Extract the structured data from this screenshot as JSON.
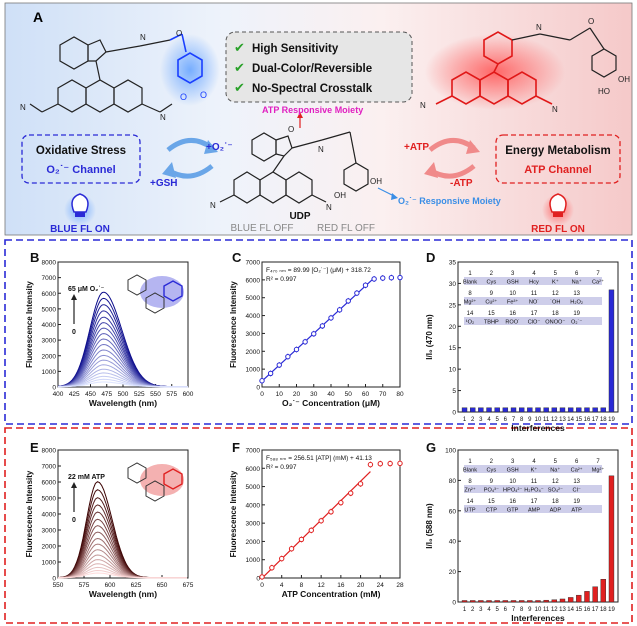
{
  "panel_letters": [
    "A",
    "B",
    "C",
    "D",
    "E",
    "F",
    "G"
  ],
  "top": {
    "features": [
      "High Sensitivity",
      "Dual-Color/Reversible",
      "No-Spectral Crosstalk"
    ],
    "left_box_title": "Oxidative Stress",
    "left_box_channel": "O₂˙⁻ Channel",
    "right_box_title": "Energy Metabolism",
    "right_box_channel": "ATP Channel",
    "left_arrow_top": "+O₂˙⁻",
    "left_arrow_bottom": "+GSH",
    "right_arrow_top": "+ATP",
    "right_arrow_bottom": "-ATP",
    "atp_moiety": "ATP Responsive Moiety",
    "o2_moiety": "O₂˙⁻ Responsive Moiety",
    "probe_name": "UDP",
    "blue_off": "BLUE FL OFF",
    "red_off": "RED FL OFF",
    "blue_on": "BLUE FL ON",
    "red_on": "RED FL ON",
    "colors": {
      "blue": "#2a2ad6",
      "red": "#e02020",
      "magenta": "#e020c0",
      "sky": "#3a8ee6",
      "green": "#2aa12a"
    }
  },
  "chart_data": [
    {
      "id": "B",
      "type": "line",
      "xlabel": "Wavelength (nm)",
      "ylabel": "Fluorescence Intensity",
      "xlim": [
        400,
        600
      ],
      "ylim": [
        0,
        8000
      ],
      "xticks": [
        400,
        425,
        450,
        475,
        500,
        525,
        550,
        575,
        600
      ],
      "yticks": [
        0,
        1000,
        2000,
        3000,
        4000,
        5000,
        6000,
        7000,
        8000
      ],
      "annotation_top": "65 μM O₂˙⁻",
      "annotation_bottom": "0",
      "peak_x": 470,
      "series_peaks": [
        6050,
        5650,
        5250,
        4850,
        4450,
        4100,
        3750,
        3400,
        3050,
        2700,
        2350,
        2000,
        1700,
        1400,
        1120,
        880,
        660,
        470,
        300
      ]
    },
    {
      "id": "C",
      "type": "scatter",
      "xlabel": "O₂˙⁻ Concentration (μM)",
      "ylabel": "Fluorescence Intensity",
      "xlim": [
        0,
        80
      ],
      "ylim": [
        0,
        7000
      ],
      "xticks": [
        0,
        10,
        20,
        30,
        40,
        50,
        60,
        70,
        80
      ],
      "yticks": [
        0,
        1000,
        2000,
        3000,
        4000,
        5000,
        6000,
        7000
      ],
      "equation": "F₄₇₀ ₙₘ = 89.99 [O₂˙⁻] (μM) + 318.72",
      "r2": "R² = 0.997",
      "x": [
        0,
        5,
        10,
        15,
        20,
        25,
        30,
        35,
        40,
        45,
        50,
        55,
        60,
        65,
        70,
        75,
        80
      ],
      "y": [
        350,
        760,
        1230,
        1700,
        2100,
        2530,
        2980,
        3420,
        3870,
        4320,
        4820,
        5260,
        5700,
        6050,
        6100,
        6120,
        6130
      ],
      "fit_range": [
        0,
        65
      ]
    },
    {
      "id": "D",
      "type": "bar",
      "xlabel": "Interferences",
      "ylabel": "I/I₀ (470 nm)",
      "ylim": [
        0,
        35
      ],
      "yticks": [
        0,
        5,
        10,
        15,
        20,
        25,
        30,
        35
      ],
      "categories": [
        "1",
        "2",
        "3",
        "4",
        "5",
        "6",
        "7",
        "8",
        "9",
        "10",
        "11",
        "12",
        "13",
        "14",
        "15",
        "16",
        "17",
        "18",
        "19"
      ],
      "values": [
        1,
        1,
        1,
        1,
        1,
        1,
        1,
        1,
        1,
        1,
        1,
        1,
        1,
        1,
        1,
        1,
        1,
        1,
        28.5
      ],
      "legend_numbers": [
        [
          "1",
          "2",
          "3",
          "4",
          "5",
          "6",
          "7"
        ],
        [
          "8",
          "9",
          "10",
          "11",
          "12",
          "13"
        ],
        [
          "14",
          "15",
          "16",
          "17",
          "18",
          "19"
        ]
      ],
      "legend_names": [
        [
          "Blank",
          "Cys",
          "GSH",
          "Hcy",
          "K⁺",
          "Na⁺",
          "Ca²⁺"
        ],
        [
          "Mg²⁺",
          "Cu²⁺",
          "Fe³⁺",
          "NO˙",
          "˙OH",
          "H₂O₂"
        ],
        [
          "¹O₂",
          "TBHP",
          "ROO˙",
          "ClO⁻",
          "ONOO⁻",
          "O₂˙⁻"
        ]
      ]
    },
    {
      "id": "E",
      "type": "line",
      "xlabel": "Wavelength (nm)",
      "ylabel": "Fluorescence Intensity",
      "xlim": [
        550,
        675
      ],
      "ylim": [
        0,
        8000
      ],
      "xticks": [
        550,
        575,
        600,
        625,
        650,
        675
      ],
      "yticks": [
        0,
        1000,
        2000,
        3000,
        4000,
        5000,
        6000,
        7000,
        8000
      ],
      "annotation_top": "22 mM ATP",
      "annotation_bottom": "0",
      "peak_x": 588,
      "series_peaks": [
        6000,
        5500,
        5000,
        4550,
        4100,
        3650,
        3250,
        2850,
        2450,
        2100,
        1750,
        1420,
        1130,
        870,
        640,
        450,
        290
      ]
    },
    {
      "id": "F",
      "type": "scatter",
      "xlabel": "ATP Concentration (mM)",
      "ylabel": "Fluorescence Intensity",
      "xlim": [
        0,
        28
      ],
      "ylim": [
        0,
        7000
      ],
      "xticks": [
        0,
        4,
        8,
        12,
        16,
        20,
        24,
        28
      ],
      "yticks": [
        0,
        1000,
        2000,
        3000,
        4000,
        5000,
        6000,
        7000
      ],
      "equation": "F₅₈₈ ₙₘ = 256.51 [ATP] (mM) + 41.13",
      "r2": "R² = 0.997",
      "x": [
        0,
        2,
        4,
        6,
        8,
        10,
        12,
        14,
        16,
        18,
        20,
        22,
        24,
        26,
        28
      ],
      "y": [
        60,
        560,
        1060,
        1600,
        2110,
        2610,
        3130,
        3620,
        4120,
        4640,
        5150,
        6200,
        6250,
        6260,
        6270
      ],
      "fit_range": [
        0,
        22
      ]
    },
    {
      "id": "G",
      "type": "bar",
      "xlabel": "Interferences",
      "ylabel": "I/I₀ (588 nm)",
      "ylim": [
        0,
        100
      ],
      "yticks": [
        0,
        20,
        40,
        60,
        80,
        100
      ],
      "categories": [
        "1",
        "2",
        "3",
        "4",
        "5",
        "6",
        "7",
        "8",
        "9",
        "10",
        "11",
        "12",
        "13",
        "14",
        "15",
        "16",
        "17",
        "18",
        "19"
      ],
      "values": [
        1,
        1,
        1,
        1,
        1,
        1,
        1,
        1,
        1,
        1,
        1.2,
        1.5,
        2,
        3,
        4.5,
        7,
        10,
        15,
        83
      ],
      "legend_numbers": [
        [
          "1",
          "2",
          "3",
          "4",
          "5",
          "6",
          "7"
        ],
        [
          "8",
          "9",
          "10",
          "11",
          "12",
          "13"
        ],
        [
          "14",
          "15",
          "16",
          "17",
          "18",
          "19"
        ]
      ],
      "legend_names": [
        [
          "Blank",
          "Cys",
          "GSH",
          "K⁺",
          "Na⁺",
          "Ca²⁺",
          "Mg²⁺"
        ],
        [
          "Zn²⁺",
          "PO₄³⁻",
          "HPO₄²⁻",
          "H₂PO₄⁻",
          "SO₄²⁻",
          "Cl⁻"
        ],
        [
          "UTP",
          "CTP",
          "GTP",
          "AMP",
          "ADP",
          "ATP"
        ]
      ]
    }
  ]
}
